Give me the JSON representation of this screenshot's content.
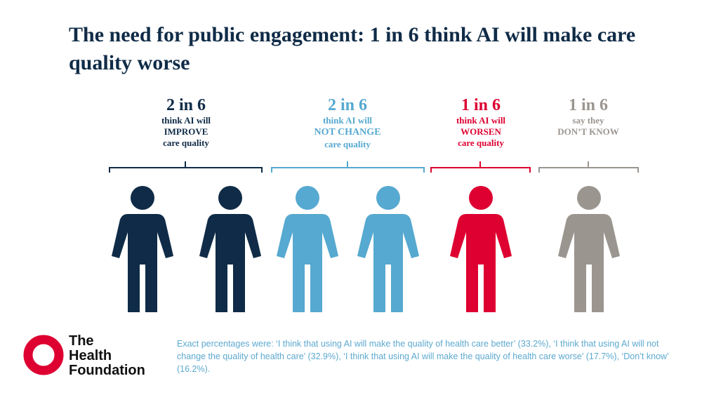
{
  "title": "The need for public engagement: 1 in 6 think AI will make care quality worse",
  "chart_data": {
    "type": "pictogram",
    "total": 6,
    "groups": [
      {
        "key": "improve",
        "ratio": "2 in 6",
        "people": 2,
        "line1": "think AI will",
        "line2": "IMPROVE",
        "line3": "care quality",
        "color": "#0f2b47"
      },
      {
        "key": "no-change",
        "ratio": "2 in 6",
        "people": 2,
        "line1": "think AI will",
        "line2": "NOT CHANGE",
        "line3": "care quality",
        "color": "#56a9d0"
      },
      {
        "key": "worsen",
        "ratio": "1 in 6",
        "people": 1,
        "line1": "think AI will",
        "line2": "WORSEN",
        "line3": "care quality",
        "color": "#dd0031"
      },
      {
        "key": "dont-know",
        "ratio": "1 in 6",
        "people": 1,
        "line1": "say they",
        "line2": "DON’T KNOW",
        "line3": "",
        "color": "#9b9590"
      }
    ]
  },
  "footnote": "Exact percentages were: ‘I think that using AI will make the quality of health care better’ (33.2%), ‘I think that using AI will not change the quality of health care’ (32.9%), ‘I think that using AI will make the quality of health care worse’ (17.7%), ‘Don’t know’ (16.2%).",
  "logo": {
    "line1": "The",
    "line2": "Health",
    "line3": "Foundation",
    "ring_color": "#dd0031"
  }
}
